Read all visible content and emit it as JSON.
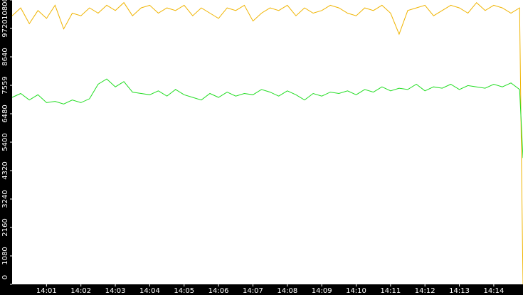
{
  "chart_data": {
    "type": "line",
    "x": [
      0,
      0.25,
      0.5,
      0.75,
      1,
      1.25,
      1.5,
      1.75,
      2,
      2.25,
      2.5,
      2.75,
      3,
      3.25,
      3.5,
      3.75,
      4,
      4.25,
      4.5,
      4.75,
      5,
      5.25,
      5.5,
      5.75,
      6,
      6.25,
      6.5,
      6.75,
      7,
      7.25,
      7.5,
      7.75,
      8,
      8.25,
      8.5,
      8.75,
      9,
      9.25,
      9.5,
      9.75,
      10,
      10.25,
      10.5,
      10.75,
      11,
      11.25,
      11.5,
      11.75,
      12,
      12.25,
      12.5,
      12.75,
      13,
      13.25,
      13.5,
      13.75,
      14,
      14.25,
      14.5,
      14.75,
      14.85
    ],
    "series": [
      {
        "color": "#f0b400",
        "values": [
          10200,
          10500,
          9900,
          10400,
          10100,
          10600,
          9700,
          10300,
          10200,
          10500,
          10300,
          10600,
          10400,
          10700,
          10200,
          10500,
          10600,
          10300,
          10500,
          10400,
          10600,
          10200,
          10500,
          10300,
          10100,
          10500,
          10400,
          10600,
          10000,
          10300,
          10500,
          10400,
          10600,
          10200,
          10500,
          10300,
          10400,
          10600,
          10500,
          10300,
          10200,
          10500,
          10400,
          10600,
          10300,
          9500,
          10400,
          10500,
          10600,
          10200,
          10400,
          10600,
          10500,
          10300,
          10700,
          10400,
          10600,
          10500,
          10300,
          10500,
          0
        ]
      },
      {
        "color": "#22dd22",
        "values": [
          7100,
          7250,
          7000,
          7200,
          6900,
          6950,
          6850,
          7000,
          6900,
          7050,
          7600,
          7800,
          7500,
          7700,
          7300,
          7250,
          7200,
          7350,
          7150,
          7400,
          7200,
          7100,
          7000,
          7250,
          7100,
          7300,
          7150,
          7250,
          7200,
          7400,
          7300,
          7150,
          7350,
          7200,
          7000,
          7250,
          7150,
          7300,
          7250,
          7350,
          7200,
          7400,
          7300,
          7500,
          7350,
          7450,
          7400,
          7600,
          7350,
          7500,
          7450,
          7600,
          7400,
          7550,
          7500,
          7450,
          7600,
          7500,
          7650,
          7400,
          4800
        ]
      }
    ],
    "xlim": [
      0,
      14.85
    ],
    "xticks": [
      {
        "value": 1,
        "label": "14:01"
      },
      {
        "value": 2,
        "label": "14:02"
      },
      {
        "value": 3,
        "label": "14:03"
      },
      {
        "value": 4,
        "label": "14:04"
      },
      {
        "value": 5,
        "label": "14:05"
      },
      {
        "value": 6,
        "label": "14:06"
      },
      {
        "value": 7,
        "label": "14:07"
      },
      {
        "value": 8,
        "label": "14:08"
      },
      {
        "value": 9,
        "label": "14:09"
      },
      {
        "value": 10,
        "label": "14:10"
      },
      {
        "value": 11,
        "label": "14:11"
      },
      {
        "value": 12,
        "label": "14:12"
      },
      {
        "value": 13,
        "label": "14:13"
      },
      {
        "value": 14,
        "label": "14:14"
      }
    ],
    "ylim": [
      0,
      10800
    ],
    "yticks": [
      0,
      1080,
      2160,
      3240,
      4320,
      5400,
      6480,
      7559,
      8640,
      9720,
      10800
    ]
  }
}
